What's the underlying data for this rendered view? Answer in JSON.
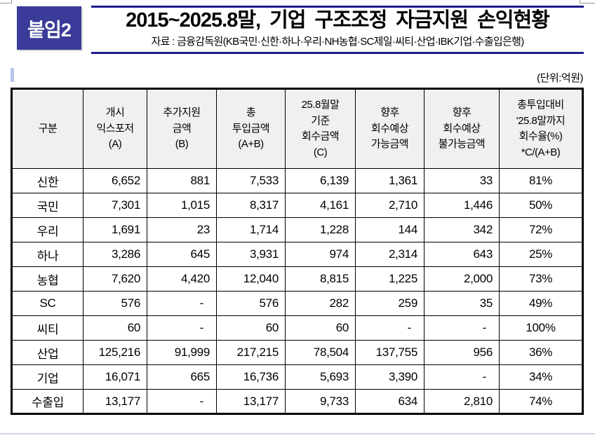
{
  "document": {
    "badge_label": "붙임2",
    "title": "2015~2025.8말, 기업 구조조정 자금지원 손익현황",
    "source_note": "자료 : 금융감독원(KB국민·신한·하나·우리·NH농협·SC제일·씨티·산업·IBK기업·수출입은행)",
    "unit_label": "(단위:억원)"
  },
  "colors": {
    "badge_bg": "#3b3b99",
    "title_rule": "#1c1c8f",
    "table_header_bg": "#f0f0f0",
    "table_border": "#000000",
    "cursor_mark": "#b8c4ea"
  },
  "table": {
    "headers": [
      "구분",
      "개시\n익스포저\n(A)",
      "추가지원\n금액\n(B)",
      "총\n투입금액\n(A+B)",
      "25.8월말\n기준\n회수금액\n(C)",
      "향후\n회수예상\n가능금액",
      "향후\n회수예상\n불가능금액",
      "총투입대비\n'25.8말까지\n회수율(%)\n*C/(A+B)"
    ],
    "rows": [
      [
        "신한",
        "6,652",
        "881",
        "7,533",
        "6,139",
        "1,361",
        "33",
        "81%"
      ],
      [
        "국민",
        "7,301",
        "1,015",
        "8,317",
        "4,161",
        "2,710",
        "1,446",
        "50%"
      ],
      [
        "우리",
        "1,691",
        "23",
        "1,714",
        "1,228",
        "144",
        "342",
        "72%"
      ],
      [
        "하나",
        "3,286",
        "645",
        "3,931",
        "974",
        "2,314",
        "643",
        "25%"
      ],
      [
        "농협",
        "7,620",
        "4,420",
        "12,040",
        "8,815",
        "1,225",
        "2,000",
        "73%"
      ],
      [
        "SC",
        "576",
        "-",
        "576",
        "282",
        "259",
        "35",
        "49%"
      ],
      [
        "씨티",
        "60",
        "-",
        "60",
        "60",
        "-",
        "-",
        "100%"
      ],
      [
        "산업",
        "125,216",
        "91,999",
        "217,215",
        "78,504",
        "137,755",
        "956",
        "36%"
      ],
      [
        "기업",
        "16,071",
        "665",
        "16,736",
        "5,693",
        "3,390",
        "-",
        "34%"
      ],
      [
        "수출입",
        "13,177",
        "-",
        "13,177",
        "9,733",
        "634",
        "2,810",
        "74%"
      ]
    ]
  }
}
